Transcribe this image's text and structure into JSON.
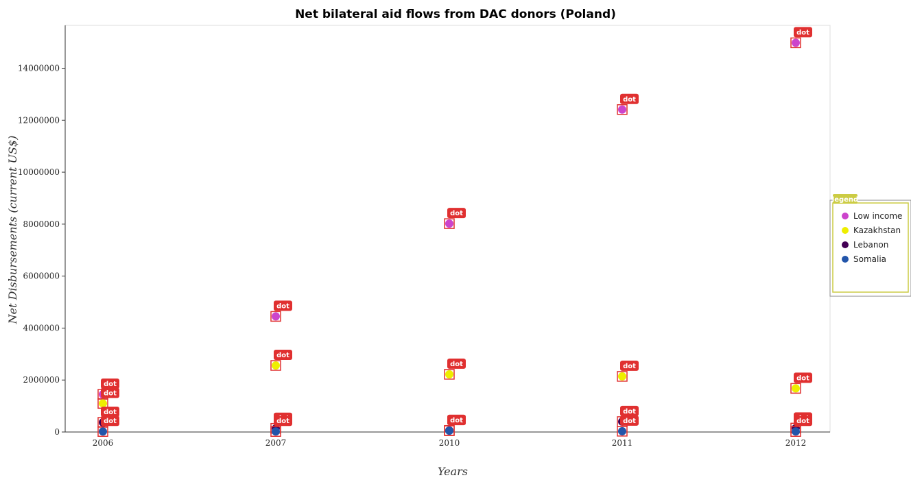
{
  "chart_data": {
    "type": "scatter",
    "title": "Net bilateral aid flows from DAC donors (Poland)",
    "xlabel": "Years",
    "ylabel": "Net Disbursements (current US$)",
    "categories": [
      "2006",
      "2007",
      "2010",
      "2011",
      "2012"
    ],
    "ylim": [
      0,
      15650000
    ],
    "yticks": [
      0,
      2000000,
      4000000,
      6000000,
      8000000,
      10000000,
      12000000,
      14000000
    ],
    "ytick_labels": [
      "0",
      "2000000",
      "4000000",
      "6000000",
      "8000000",
      "10000000",
      "12000000",
      "14000000"
    ],
    "series": [
      {
        "name": "Low income",
        "color": "#cc44cc",
        "values": [
          1450000,
          4450000,
          8020000,
          12410000,
          14980000
        ]
      },
      {
        "name": "Kazakhstan",
        "color": "#eeee00",
        "values": [
          1100000,
          2560000,
          2220000,
          2140000,
          1680000
        ]
      },
      {
        "name": "Lebanon",
        "color": "#440055",
        "values": [
          370000,
          140000,
          60000,
          400000,
          150000
        ]
      },
      {
        "name": "Somalia",
        "color": "#2255aa",
        "values": [
          20000,
          20000,
          50000,
          30000,
          20000
        ]
      }
    ],
    "point_tag": "dot",
    "legend_title": "legend",
    "legend_placement": "right",
    "grid": false
  }
}
